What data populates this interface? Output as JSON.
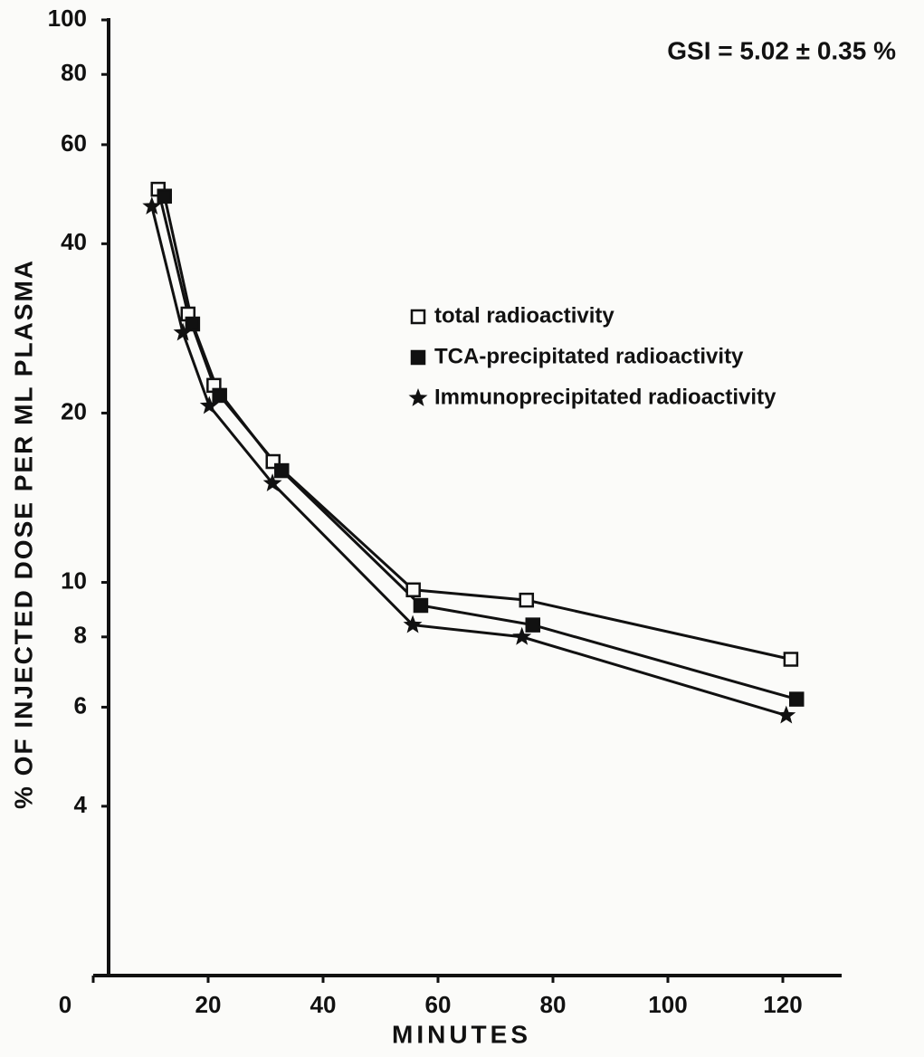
{
  "chart_data": {
    "type": "scatter",
    "title": "GSI = 5.02 ± 0.35 %",
    "x_label": "MINUTES",
    "y_label": "% OF INJECTED DOSE PER ML PLASMA",
    "xlim": [
      0,
      130
    ],
    "ylim": [
      2,
      100
    ],
    "log_y": true,
    "xticks": [
      0,
      20,
      40,
      60,
      80,
      100,
      120
    ],
    "yticks": [
      4,
      6,
      8,
      10,
      20,
      40,
      60,
      80,
      100
    ],
    "series": [
      {
        "name": "total radioactivity",
        "marker": "open-square",
        "color": "#111",
        "x": [
          11.3,
          16.5,
          21,
          31.3,
          55.7,
          75.4,
          121.4
        ],
        "values": [
          50,
          30,
          22.4,
          16.4,
          9.7,
          9.3,
          7.3
        ]
      },
      {
        "name": "TCA-precipitated radioactivity",
        "marker": "filled-square",
        "color": "#111",
        "x": [
          12.4,
          17.3,
          22,
          32.8,
          57,
          76.5,
          122.4
        ],
        "values": [
          48.6,
          28.8,
          21.5,
          15.8,
          9.1,
          8.4,
          6.2
        ]
      },
      {
        "name": "Immunoprecipitated radioactivity",
        "marker": "star",
        "color": "#111",
        "x": [
          10.2,
          15.6,
          20.2,
          31.2,
          55.6,
          74.6,
          120.6
        ],
        "values": [
          46.6,
          27.8,
          20.6,
          15.0,
          8.4,
          8.0,
          5.8
        ]
      }
    ]
  }
}
